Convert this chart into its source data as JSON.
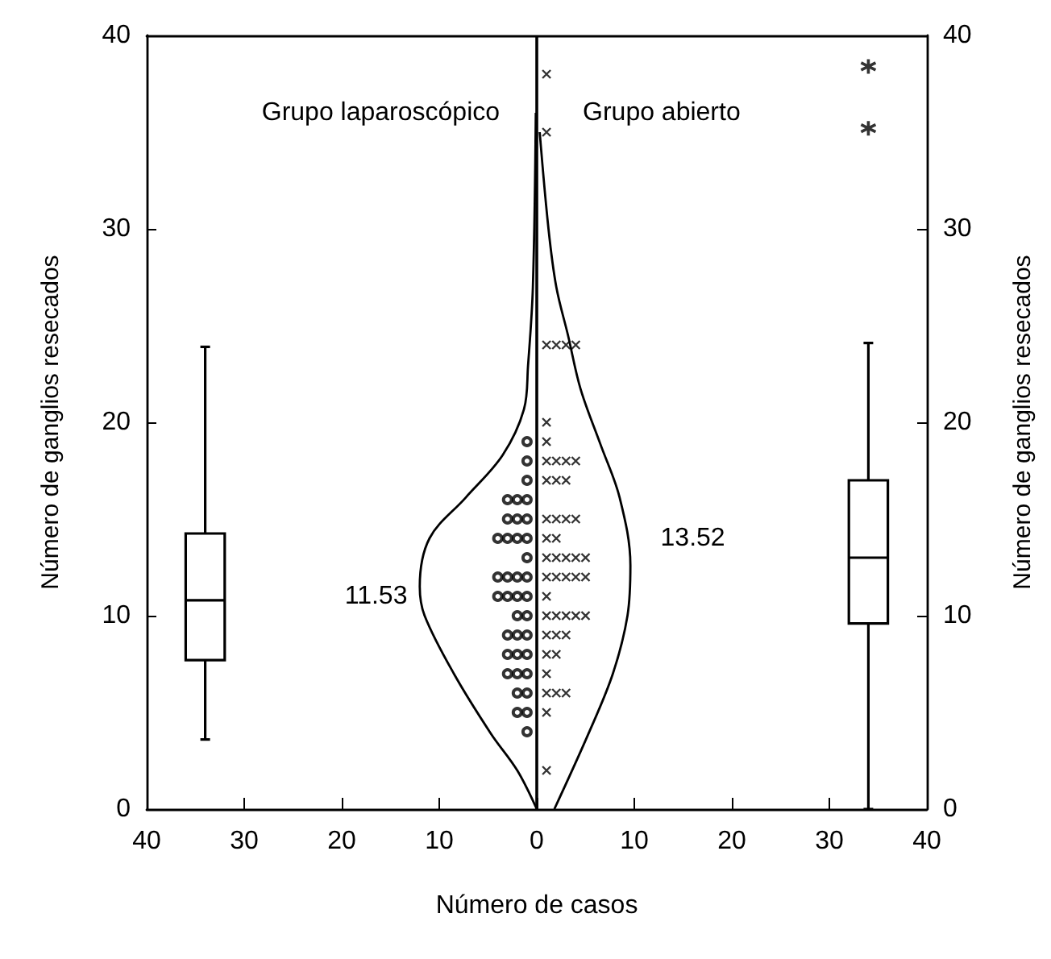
{
  "chart_data": {
    "type": "scatter",
    "xlabel": "Número de casos",
    "ylabel": "Número de ganglios resecados",
    "y2label": "Número de ganglios resecados",
    "xlim": [
      -40,
      40
    ],
    "xticks": [
      {
        "value": -40,
        "label": "40"
      },
      {
        "value": -30,
        "label": "30"
      },
      {
        "value": -20,
        "label": "20"
      },
      {
        "value": -10,
        "label": "10"
      },
      0,
      10,
      20,
      30,
      40
    ],
    "ylim": [
      0,
      40
    ],
    "yticks": [
      0,
      10,
      20,
      30,
      40
    ],
    "y2lim": [
      0,
      40
    ],
    "y2ticks": [
      0,
      10,
      20,
      30,
      40
    ],
    "grid": false,
    "ref_lines": [
      {
        "axis": "x",
        "value": 0,
        "color": "#000000"
      }
    ],
    "annotations": [
      "Grupo laparoscópico",
      "Grupo abierto",
      "11.53",
      "13.52"
    ],
    "series": [
      {
        "marker": "circle",
        "color": "#000000",
        "x": [
          -1,
          -1,
          -1,
          -1,
          -2,
          -3,
          -1,
          -2,
          -3,
          -1,
          -2,
          -3,
          -4,
          -1,
          -1,
          -2,
          -3,
          -4,
          -1,
          -2,
          -3,
          -4,
          -1,
          -2,
          -1,
          -2,
          -3,
          -1,
          -2,
          -3,
          -1,
          -2,
          -3,
          -1,
          -2,
          -1,
          -2,
          -1
        ],
        "values": [
          19,
          18,
          17,
          16,
          16,
          16,
          15,
          15,
          15,
          14,
          14,
          14,
          14,
          13,
          12,
          12,
          12,
          12,
          11,
          11,
          11,
          11,
          10,
          10,
          9,
          9,
          9,
          8,
          8,
          8,
          7,
          7,
          7,
          6,
          6,
          5,
          5,
          4
        ]
      },
      {
        "marker": "cross",
        "color": "#000000",
        "x": [
          1,
          1,
          1,
          2,
          3,
          4,
          1,
          1,
          1,
          2,
          3,
          4,
          1,
          2,
          3,
          1,
          2,
          3,
          4,
          1,
          2,
          1,
          2,
          3,
          4,
          5,
          1,
          2,
          3,
          4,
          5,
          1,
          1,
          2,
          3,
          4,
          5,
          1,
          2,
          3,
          1,
          2,
          1,
          1,
          2,
          3,
          1,
          1
        ],
        "values": [
          38,
          35,
          24,
          24,
          24,
          24,
          20,
          19,
          18,
          18,
          18,
          18,
          17,
          17,
          17,
          15,
          15,
          15,
          15,
          14,
          14,
          13,
          13,
          13,
          13,
          13,
          12,
          12,
          12,
          12,
          12,
          11,
          10,
          10,
          10,
          10,
          10,
          9,
          9,
          9,
          8,
          8,
          7,
          6,
          6,
          6,
          5,
          2
        ]
      },
      {
        "type": "line",
        "marker": "none",
        "color": "#000000",
        "x": [
          0,
          -2,
          -4.7,
          -8.5,
          -11.5,
          -12,
          -11,
          -7.3,
          -3.5,
          -1.3,
          -0.9,
          -0.4,
          -0.1
        ],
        "values": [
          0,
          2,
          3.9,
          7,
          10,
          11.5,
          14,
          16.1,
          18.3,
          20.7,
          22.9,
          27,
          36
        ]
      },
      {
        "type": "line",
        "marker": "none",
        "color": "#000000",
        "x": [
          1.8,
          5.3,
          7.8,
          9.3,
          9.6,
          8.5,
          6.5,
          4.5,
          3.2,
          2,
          1.2,
          0.3
        ],
        "values": [
          0,
          3.9,
          7,
          10,
          12.6,
          16.1,
          18.9,
          21.7,
          24.5,
          27,
          30,
          35
        ]
      },
      {
        "type": "box",
        "color": "#000000",
        "x": [
          -34
        ],
        "boxes": [
          {
            "low": 3.6,
            "q1": 7.7,
            "median": 10.8,
            "q3": 14.25,
            "high": 23.9
          }
        ]
      },
      {
        "type": "box",
        "marker": "star",
        "color": "#000000",
        "x": [
          34
        ],
        "boxes": [
          {
            "low": 0,
            "q1": 9.6,
            "median": 13,
            "q3": 17,
            "high": 24.1,
            "outliers": [
              35.2,
              38.4
            ]
          }
        ]
      }
    ]
  }
}
